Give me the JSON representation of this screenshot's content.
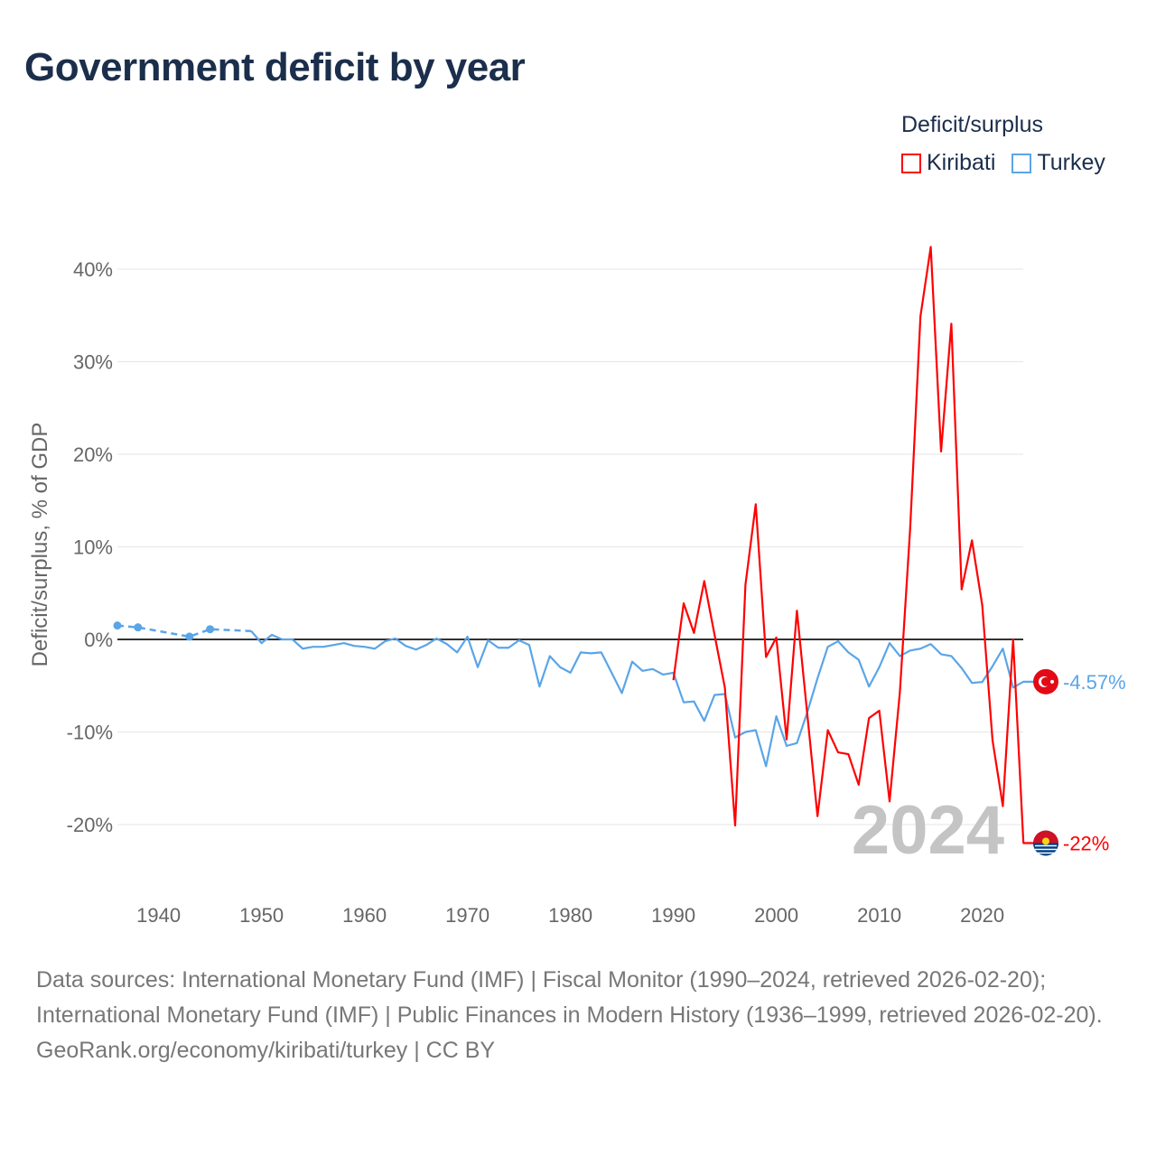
{
  "title": "Government deficit by year",
  "legend": {
    "title": "Deficit/surplus",
    "items": [
      {
        "label": "Kiribati",
        "color": "#ff0000"
      },
      {
        "label": "Turkey",
        "color": "#5aa5e8"
      }
    ]
  },
  "chart_data": {
    "type": "line",
    "title": "Government deficit by year",
    "xlabel": "",
    "ylabel": "Deficit/surplus, % of GDP",
    "xlim": [
      1936,
      2024
    ],
    "ylim": [
      -25,
      45
    ],
    "xticks": [
      1940,
      1950,
      1960,
      1970,
      1980,
      1990,
      2000,
      2010,
      2020
    ],
    "xtick_labels": [
      "1940",
      "1950",
      "1960",
      "1970",
      "1980",
      "1990",
      "2000",
      "2010",
      "2020"
    ],
    "yticks": [
      -20,
      -10,
      0,
      10,
      20,
      30,
      40
    ],
    "ytick_labels": [
      "-20%",
      "-10%",
      "0%",
      "10%",
      "20%",
      "30%",
      "40%"
    ],
    "grid": true,
    "legend_position": "top-right",
    "year_watermark": "2024",
    "series": [
      {
        "name": "Kiribati",
        "color": "#ff0000",
        "end_label": "-22%",
        "x": [
          1990,
          1991,
          1992,
          1993,
          1994,
          1995,
          1996,
          1997,
          1998,
          1999,
          2000,
          2001,
          2002,
          2003,
          2004,
          2005,
          2006,
          2007,
          2008,
          2009,
          2010,
          2011,
          2012,
          2013,
          2014,
          2015,
          2016,
          2017,
          2018,
          2019,
          2020,
          2021,
          2022,
          2023,
          2024
        ],
        "y": [
          -4.4,
          3.9,
          0.7,
          6.3,
          0.5,
          -5.2,
          -20.1,
          5.9,
          14.6,
          -1.9,
          0.2,
          -10.8,
          3.1,
          -8.0,
          -19.1,
          -9.8,
          -12.2,
          -12.4,
          -15.7,
          -8.5,
          -7.7,
          -17.5,
          -5.7,
          12.0,
          34.9,
          42.4,
          20.3,
          34.1,
          5.4,
          10.7,
          3.7,
          -10.9,
          -18.0,
          0.0,
          -22.0
        ]
      },
      {
        "name": "Turkey",
        "color": "#5aa5e8",
        "end_label": "-4.57%",
        "sparse_x": [
          1936,
          1938,
          1943,
          1945,
          1949
        ],
        "sparse_y": [
          1.5,
          1.3,
          0.3,
          1.1,
          0.9
        ],
        "x": [
          1949,
          1950,
          1951,
          1952,
          1953,
          1954,
          1955,
          1956,
          1957,
          1958,
          1959,
          1960,
          1961,
          1962,
          1963,
          1964,
          1965,
          1966,
          1967,
          1968,
          1969,
          1970,
          1971,
          1972,
          1973,
          1974,
          1975,
          1976,
          1977,
          1978,
          1979,
          1980,
          1981,
          1982,
          1983,
          1984,
          1985,
          1986,
          1987,
          1988,
          1989,
          1990,
          1991,
          1992,
          1993,
          1994,
          1995,
          1996,
          1997,
          1998,
          1999,
          2000,
          2001,
          2002,
          2003,
          2004,
          2005,
          2006,
          2007,
          2008,
          2009,
          2010,
          2011,
          2012,
          2013,
          2014,
          2015,
          2016,
          2017,
          2018,
          2019,
          2020,
          2021,
          2022,
          2023,
          2024
        ],
        "y": [
          0.9,
          -0.4,
          0.5,
          0.0,
          0.0,
          -1.0,
          -0.8,
          -0.8,
          -0.6,
          -0.4,
          -0.7,
          -0.8,
          -1.0,
          -0.2,
          0.1,
          -0.7,
          -1.1,
          -0.6,
          0.1,
          -0.5,
          -1.4,
          0.3,
          -3.0,
          -0.1,
          -0.9,
          -0.9,
          -0.1,
          -0.6,
          -5.1,
          -1.8,
          -3.0,
          -3.6,
          -1.4,
          -1.5,
          -1.4,
          -3.6,
          -5.8,
          -2.4,
          -3.4,
          -3.2,
          -3.8,
          -3.6,
          -6.8,
          -6.7,
          -8.8,
          -6.0,
          -5.9,
          -10.6,
          -10.0,
          -9.8,
          -13.7,
          -8.3,
          -11.5,
          -11.2,
          -7.9,
          -4.2,
          -0.8,
          -0.2,
          -1.4,
          -2.2,
          -5.1,
          -3.0,
          -0.4,
          -1.8,
          -1.2,
          -1.0,
          -0.5,
          -1.6,
          -1.8,
          -3.1,
          -4.7,
          -4.6,
          -2.9,
          -1.0,
          -5.2,
          -4.57
        ]
      }
    ]
  },
  "footer": {
    "sources": "Data sources: International Monetary Fund (IMF) | Fiscal Monitor (1990–2024, retrieved 2026-02-20); International Monetary Fund (IMF) | Public Finances in Modern History (1936–1999, retrieved 2026-02-20).",
    "credit": "GeoRank.org/economy/kiribati/turkey | CC BY"
  }
}
